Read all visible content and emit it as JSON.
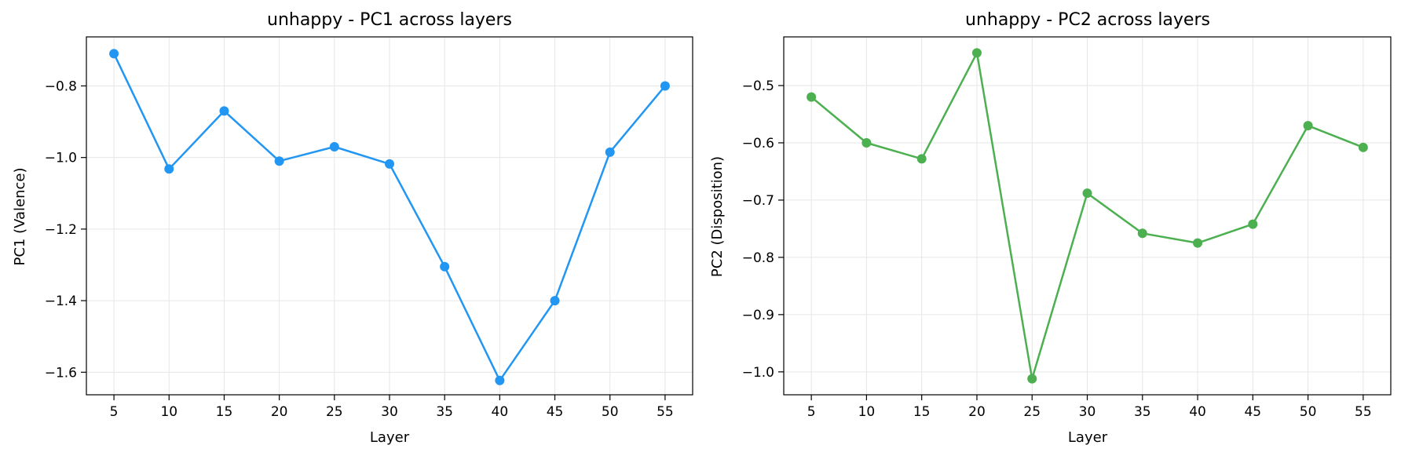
{
  "chart_data": [
    {
      "type": "line",
      "title": "unhappy - PC1 across layers",
      "xlabel": "Layer",
      "ylabel": "PC1 (Valence)",
      "x": [
        5,
        10,
        15,
        20,
        25,
        30,
        35,
        40,
        45,
        50,
        55
      ],
      "xticks": [
        5,
        10,
        15,
        20,
        25,
        30,
        35,
        40,
        45,
        50,
        55
      ],
      "xlim": [
        2.5,
        57.5
      ],
      "yticks": [
        -1.6,
        -1.4,
        -1.2,
        -1.0,
        -0.8
      ],
      "ytick_labels": [
        "−1.6",
        "−1.4",
        "−1.2",
        "−1.0",
        "−0.8"
      ],
      "ylim": [
        -1.663,
        -0.663
      ],
      "grid": true,
      "color": "#2196F3",
      "series": [
        {
          "values": [
            -0.71,
            -1.032,
            -0.87,
            -1.01,
            -0.97,
            -1.018,
            -1.305,
            -1.623,
            -1.4,
            -0.985,
            -0.8
          ]
        }
      ]
    },
    {
      "type": "line",
      "title": "unhappy - PC2 across layers",
      "xlabel": "Layer",
      "ylabel": "PC2 (Disposition)",
      "x": [
        5,
        10,
        15,
        20,
        25,
        30,
        35,
        40,
        45,
        50,
        55
      ],
      "xticks": [
        5,
        10,
        15,
        20,
        25,
        30,
        35,
        40,
        45,
        50,
        55
      ],
      "xlim": [
        2.5,
        57.5
      ],
      "yticks": [
        -1.0,
        -0.9,
        -0.8,
        -0.7,
        -0.6,
        -0.5
      ],
      "ytick_labels": [
        "−1.0",
        "−0.9",
        "−0.8",
        "−0.7",
        "−0.6",
        "−0.5"
      ],
      "ylim": [
        -1.04,
        -0.415
      ],
      "grid": true,
      "color": "#4CAF50",
      "series": [
        {
          "values": [
            -0.52,
            -0.6,
            -0.628,
            -0.443,
            -1.012,
            -0.688,
            -0.758,
            -0.775,
            -0.742,
            -0.57,
            -0.608
          ]
        }
      ]
    }
  ]
}
